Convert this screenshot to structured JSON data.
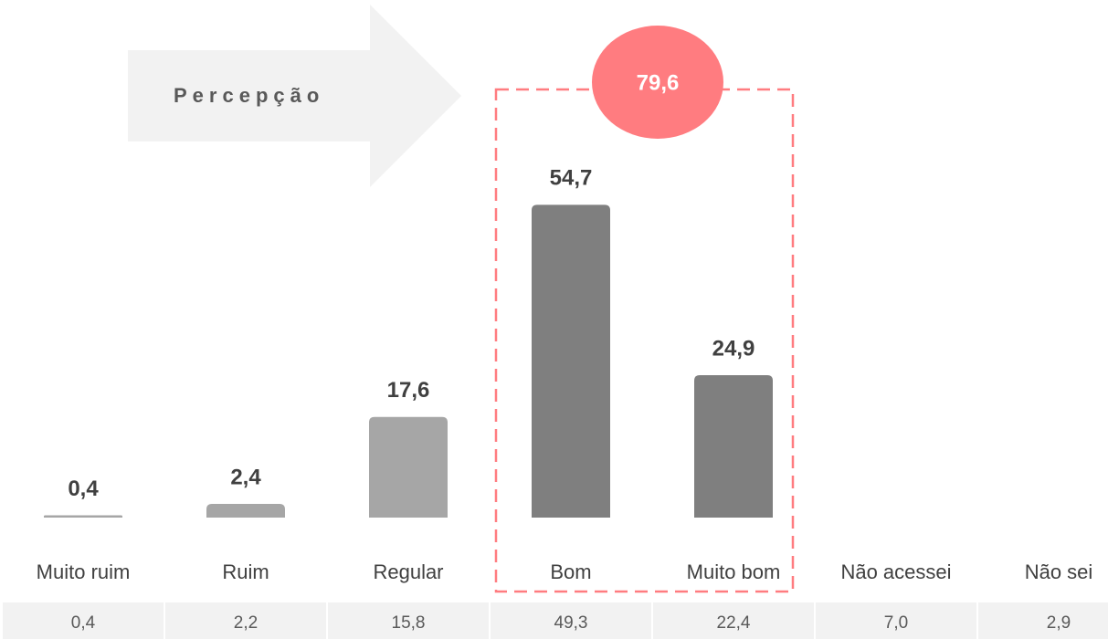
{
  "chart_data": {
    "type": "bar",
    "categories": [
      "Muito ruim",
      "Ruim",
      "Regular",
      "Bom",
      "Muito bom",
      "Não acessei",
      "Não sei"
    ],
    "values": [
      0.4,
      2.4,
      17.6,
      54.7,
      24.9,
      null,
      null
    ],
    "value_labels": [
      "0,4",
      "2,4",
      "17,6",
      "54,7",
      "24,9",
      null,
      null
    ],
    "colors": [
      "#a6a6a6",
      "#a6a6a6",
      "#a6a6a6",
      "#7f7f7f",
      "#7f7f7f",
      "#7f7f7f",
      "#7f7f7f"
    ],
    "ylim": [
      0,
      57
    ],
    "table_values": [
      0.4,
      2.2,
      15.8,
      49.3,
      22.4,
      7.0,
      2.9
    ],
    "table_value_labels": [
      "0,4",
      "2,2",
      "15,8",
      "49,3",
      "22,4",
      "7,0",
      "2,9"
    ],
    "arrow_label": "Percepção",
    "highlight_value": 79.6,
    "highlight_label": "79,6",
    "highlight_color": "#ff7c80"
  }
}
